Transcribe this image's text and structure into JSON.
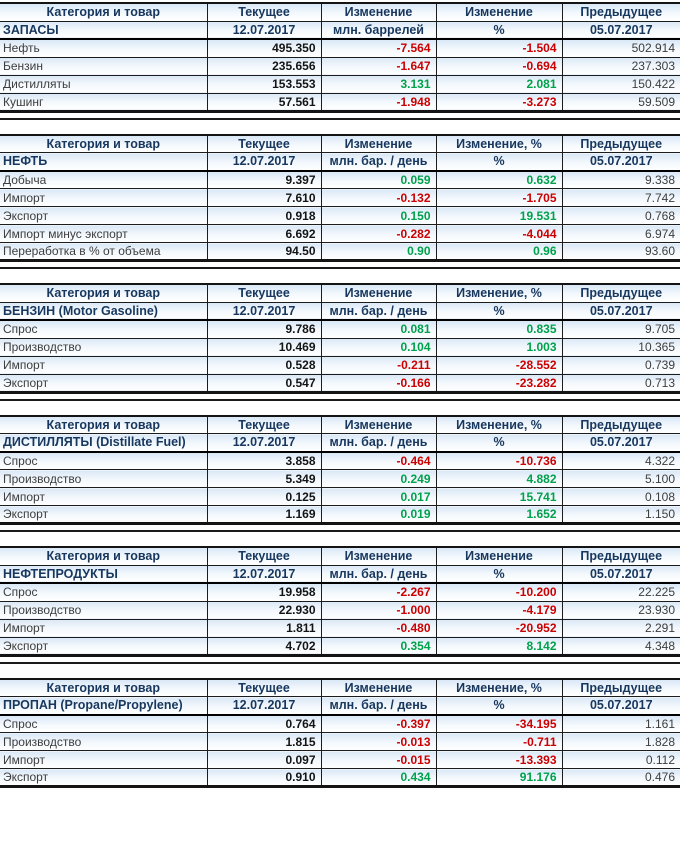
{
  "colors": {
    "positive": "#00A14B",
    "negative": "#CC0000",
    "header_text": "#17375E",
    "row_background": "#D9E7F6"
  },
  "chart_data": [
    {
      "type": "table",
      "id": "zapasy",
      "col_headers": [
        "Категория и товар",
        "Текущее",
        "Изменение",
        "Изменение",
        "Предыдущее"
      ],
      "sub_headers": [
        "ЗАПАСЫ",
        "12.07.2017",
        "млн. баррелей",
        "%",
        "05.07.2017"
      ],
      "rows": [
        {
          "label": "Нефть",
          "current": "495.350",
          "change": "-7.564",
          "change_pct": "-1.504",
          "previous": "502.914"
        },
        {
          "label": "Бензин",
          "current": "235.656",
          "change": "-1.647",
          "change_pct": "-0.694",
          "previous": "237.303"
        },
        {
          "label": "Дистилляты",
          "current": "153.553",
          "change": "3.131",
          "change_pct": "2.081",
          "previous": "150.422"
        },
        {
          "label": "Кушинг",
          "current": "57.561",
          "change": "-1.948",
          "change_pct": "-3.273",
          "previous": "59.509"
        }
      ]
    },
    {
      "type": "table",
      "id": "neft",
      "col_headers": [
        "Категория и товар",
        "Текущее",
        "Изменение",
        "Изменение, %",
        "Предыдущее"
      ],
      "sub_headers": [
        "НЕФТЬ",
        "12.07.2017",
        "млн. бар. / день",
        "%",
        "05.07.2017"
      ],
      "rows": [
        {
          "label": "Добыча",
          "current": "9.397",
          "change": "0.059",
          "change_pct": "0.632",
          "previous": "9.338"
        },
        {
          "label": "Импорт",
          "current": "7.610",
          "change": "-0.132",
          "change_pct": "-1.705",
          "previous": "7.742"
        },
        {
          "label": "Экспорт",
          "current": "0.918",
          "change": "0.150",
          "change_pct": "19.531",
          "previous": "0.768"
        },
        {
          "label": "Импорт минус экспорт",
          "current": "6.692",
          "change": "-0.282",
          "change_pct": "-4.044",
          "previous": "6.974"
        },
        {
          "label": "Переработка в % от объема",
          "current": "94.50",
          "change": "0.90",
          "change_pct": "0.96",
          "previous": "93.60"
        }
      ]
    },
    {
      "type": "table",
      "id": "benzin",
      "col_headers": [
        "Категория и товар",
        "Текущее",
        "Изменение",
        "Изменение, %",
        "Предыдущее"
      ],
      "sub_headers": [
        "БЕНЗИН (Motor Gasoline)",
        "12.07.2017",
        "млн. бар. / день",
        "%",
        "05.07.2017"
      ],
      "rows": [
        {
          "label": "Спрос",
          "current": "9.786",
          "change": "0.081",
          "change_pct": "0.835",
          "previous": "9.705"
        },
        {
          "label": "Производство",
          "current": "10.469",
          "change": "0.104",
          "change_pct": "1.003",
          "previous": "10.365"
        },
        {
          "label": "Импорт",
          "current": "0.528",
          "change": "-0.211",
          "change_pct": "-28.552",
          "previous": "0.739"
        },
        {
          "label": "Экспорт",
          "current": "0.547",
          "change": "-0.166",
          "change_pct": "-23.282",
          "previous": "0.713"
        }
      ]
    },
    {
      "type": "table",
      "id": "distillyaty",
      "col_headers": [
        "Категория и товар",
        "Текущее",
        "Изменение",
        "Изменение, %",
        "Предыдущее"
      ],
      "sub_headers": [
        "ДИСТИЛЛЯТЫ (Distillate Fuel)",
        "12.07.2017",
        "млн. бар. / день",
        "%",
        "05.07.2017"
      ],
      "rows": [
        {
          "label": "Спрос",
          "current": "3.858",
          "change": "-0.464",
          "change_pct": "-10.736",
          "previous": "4.322"
        },
        {
          "label": "Производство",
          "current": "5.349",
          "change": "0.249",
          "change_pct": "4.882",
          "previous": "5.100"
        },
        {
          "label": "Импорт",
          "current": "0.125",
          "change": "0.017",
          "change_pct": "15.741",
          "previous": "0.108"
        },
        {
          "label": "Экспорт",
          "current": "1.169",
          "change": "0.019",
          "change_pct": "1.652",
          "previous": "1.150"
        }
      ]
    },
    {
      "type": "table",
      "id": "nefteprodukty",
      "col_headers": [
        "Категория и товар",
        "Текущее",
        "Изменение",
        "Изменение",
        "Предыдущее"
      ],
      "sub_headers": [
        "НЕФТЕПРОДУКТЫ",
        "12.07.2017",
        "млн. бар. / день",
        "%",
        "05.07.2017"
      ],
      "rows": [
        {
          "label": "Спрос",
          "current": "19.958",
          "change": "-2.267",
          "change_pct": "-10.200",
          "previous": "22.225"
        },
        {
          "label": "Производство",
          "current": "22.930",
          "change": "-1.000",
          "change_pct": "-4.179",
          "previous": "23.930"
        },
        {
          "label": "Импорт",
          "current": "1.811",
          "change": "-0.480",
          "change_pct": "-20.952",
          "previous": "2.291"
        },
        {
          "label": "Экспорт",
          "current": "4.702",
          "change": "0.354",
          "change_pct": "8.142",
          "previous": "4.348"
        }
      ]
    },
    {
      "type": "table",
      "id": "propan",
      "col_headers": [
        "Категория и товар",
        "Текущее",
        "Изменение",
        "Изменение, %",
        "Предыдущее"
      ],
      "sub_headers": [
        "ПРОПАН (Propane/Propylene)",
        "12.07.2017",
        "млн. бар. / день",
        "%",
        "05.07.2017"
      ],
      "rows": [
        {
          "label": "Спрос",
          "current": "0.764",
          "change": "-0.397",
          "change_pct": "-34.195",
          "previous": "1.161"
        },
        {
          "label": "Производство",
          "current": "1.815",
          "change": "-0.013",
          "change_pct": "-0.711",
          "previous": "1.828"
        },
        {
          "label": "Импорт",
          "current": "0.097",
          "change": "-0.015",
          "change_pct": "-13.393",
          "previous": "0.112"
        },
        {
          "label": "Экспорт",
          "current": "0.910",
          "change": "0.434",
          "change_pct": "91.176",
          "previous": "0.476"
        }
      ]
    }
  ]
}
